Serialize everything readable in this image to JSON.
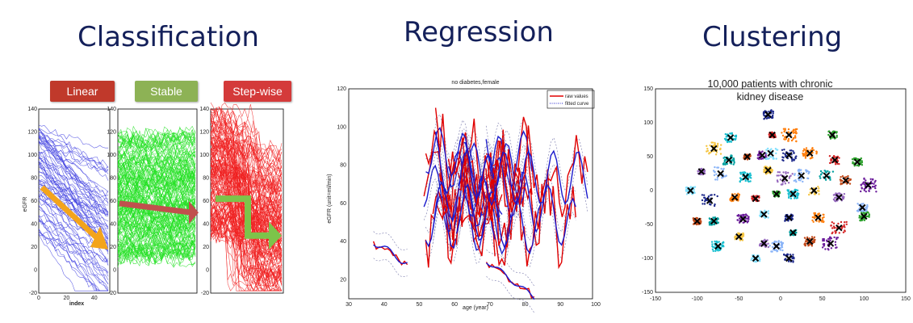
{
  "headings": {
    "classification": "Classification",
    "regression": "Regression",
    "clustering": "Clustering"
  },
  "classification": {
    "tags": [
      "Linear",
      "Stable",
      "Step-wise"
    ],
    "tag_colors": [
      "#c0392b",
      "#8db255",
      "#d43a3a"
    ],
    "line_colors": [
      "#3f3fe0",
      "#22e022",
      "#f02020"
    ],
    "arrow_colors": [
      "#f3a41c",
      "#c0504d",
      "#7cc44a"
    ],
    "ylabel": "eGFR",
    "xlabel": "index",
    "y_ticks": [
      "140",
      "120",
      "100",
      "80",
      "60",
      "40",
      "20",
      "0",
      "-20"
    ],
    "x_ticks": [
      "0",
      "20",
      "40"
    ]
  },
  "regression": {
    "title": "no diabetes,female",
    "xlabel": "age (year)",
    "ylabel": "eGFR (unit=ml/min)",
    "legend": [
      "raw values",
      "fitted curve"
    ],
    "x_ticks": [
      "30",
      "40",
      "50",
      "60",
      "70",
      "80",
      "90",
      "100"
    ],
    "y_ticks": [
      "120",
      "100",
      "80",
      "60",
      "40",
      "20"
    ]
  },
  "clustering": {
    "annotation_line1": "10,000 patients with chronic",
    "annotation_line2": "kidney disease",
    "x_ticks": [
      "-150",
      "-100",
      "-50",
      "0",
      "50",
      "100",
      "150"
    ],
    "y_ticks": [
      "150",
      "100",
      "50",
      "0",
      "-50",
      "-100",
      "-150"
    ]
  }
}
